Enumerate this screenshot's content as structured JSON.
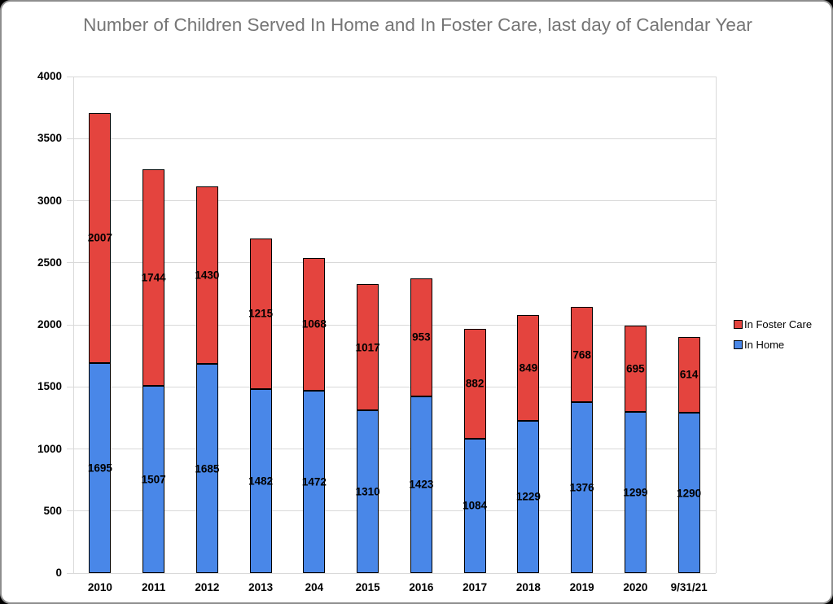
{
  "title": "Number of Children Served In Home and In Foster Care, last day of Calendar Year",
  "chart_data": {
    "type": "bar",
    "stacked": true,
    "title": "Number of Children Served In Home and In Foster Care, last day of Calendar Year",
    "categories": [
      "2010",
      "2011",
      "2012",
      "2013",
      "204",
      "2015",
      "2016",
      "2017",
      "2018",
      "2019",
      "2020",
      "9/31/21"
    ],
    "series": [
      {
        "name": "In Home",
        "color": "#4987E8",
        "values": [
          1695,
          1507,
          1685,
          1482,
          1472,
          1310,
          1423,
          1084,
          1229,
          1376,
          1299,
          1290
        ]
      },
      {
        "name": "In Foster Care",
        "color": "#E4443E",
        "values": [
          2007,
          1744,
          1430,
          1215,
          1068,
          1017,
          953,
          882,
          849,
          768,
          695,
          614
        ]
      }
    ],
    "totals": [
      3702,
      3251,
      3115,
      2697,
      2540,
      2327,
      2376,
      1966,
      2078,
      2144,
      1994,
      1904
    ],
    "xlabel": "",
    "ylabel": "",
    "ylim": [
      0,
      4000
    ],
    "ytick_step": 500,
    "yticks": [
      0,
      500,
      1000,
      1500,
      2000,
      2500,
      3000,
      3500,
      4000
    ],
    "grid": true,
    "data_labels": true,
    "legend_position": "right",
    "legend_order": [
      "In Foster Care",
      "In Home"
    ],
    "colors": {
      "grid": "#D9D9D9",
      "bar_border": "#000000",
      "title_text": "#757575",
      "label_text": "#000000",
      "background": "#FFFFFF"
    }
  }
}
